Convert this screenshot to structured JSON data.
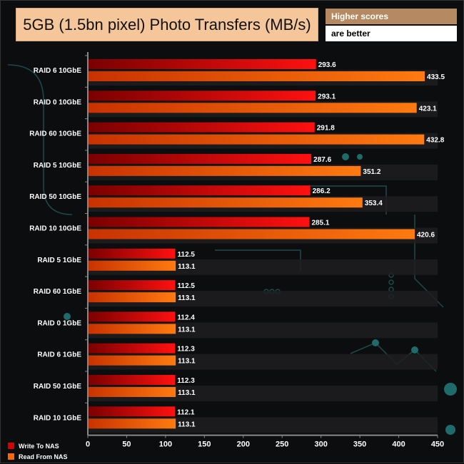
{
  "colors": {
    "write": "#d40000",
    "read": "#ff6600",
    "title_bg": "#f4c69a",
    "note_bg": "#b58a62"
  },
  "chart_data": {
    "type": "bar",
    "orientation": "horizontal",
    "title": "5GB (1.5bn pixel) Photo Transfers (MB/s)",
    "notes": [
      "Higher scores",
      "are better"
    ],
    "categories": [
      "RAID 6 10GbE",
      "RAID 0 10GbE",
      "RAID 60 10GbE",
      "RAID 5 10GbE",
      "RAID 50 10GbE",
      "RAID 10 10GbE",
      "RAID 5 1GbE",
      "RAID 60 1GbE",
      "RAID 0 1GbE",
      "RAID 6 1GbE",
      "RAID 50 1GbE",
      "RAID 10 1GbE"
    ],
    "series": [
      {
        "name": "Write To NAS",
        "values": [
          293.6,
          293.1,
          291.8,
          287.6,
          286.2,
          285.1,
          112.5,
          112.5,
          112.4,
          112.3,
          112.3,
          112.1
        ]
      },
      {
        "name": "Read From NAS",
        "values": [
          433.5,
          423.1,
          432.8,
          351.2,
          353.4,
          420.6,
          113.1,
          113.1,
          113.1,
          113.1,
          113.1,
          113.1
        ]
      }
    ],
    "xlim": [
      0,
      450
    ],
    "xticks": [
      0,
      50,
      100,
      150,
      200,
      250,
      300,
      350,
      400,
      450
    ],
    "legend_position": "bottom-left",
    "grid": false
  }
}
